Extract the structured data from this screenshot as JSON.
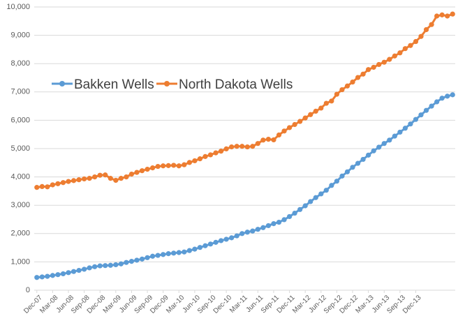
{
  "chart_data": {
    "type": "line",
    "title": "",
    "xlabel": "",
    "ylabel": "",
    "ylim": [
      0,
      10000
    ],
    "grid": true,
    "legend_placement": "upper-left",
    "y_ticks": [
      "0",
      "1,000",
      "2,000",
      "3,000",
      "4,000",
      "5,000",
      "6,000",
      "7,000",
      "8,000",
      "9,000",
      "10,000"
    ],
    "x_tick_labels": [
      "Dec-07",
      "Mar-08",
      "Jun-08",
      "Sep-08",
      "Dec-08",
      "Mar-09",
      "Jun-09",
      "Sep-09",
      "Dec-09",
      "Mar-10",
      "Jun-10",
      "Sep-10",
      "Dec-10",
      "Mar-11",
      "Jun-11",
      "Sep-11",
      "Dec-11",
      "Mar-12",
      "Jun-12",
      "Sep-12",
      "Dec-12",
      "Mar-13",
      "Jun-13",
      "Sep-13",
      "Dec-13"
    ],
    "x_first_month": "Dec-07",
    "x_last_month": "Feb-14",
    "series": [
      {
        "name": "Bakken Wells",
        "color": "#5B9BD5",
        "values": [
          450,
          470,
          490,
          520,
          550,
          580,
          620,
          660,
          700,
          740,
          790,
          830,
          860,
          870,
          880,
          900,
          930,
          980,
          1020,
          1060,
          1100,
          1150,
          1200,
          1230,
          1260,
          1290,
          1310,
          1330,
          1350,
          1400,
          1450,
          1510,
          1570,
          1630,
          1690,
          1750,
          1800,
          1850,
          1920,
          2000,
          2050,
          2090,
          2150,
          2210,
          2280,
          2350,
          2400,
          2490,
          2600,
          2720,
          2850,
          2980,
          3130,
          3270,
          3400,
          3530,
          3700,
          3850,
          4030,
          4180,
          4340,
          4480,
          4620,
          4770,
          4920,
          5050,
          5180,
          5300,
          5440,
          5580,
          5720,
          5870,
          6030,
          6190,
          6350,
          6500,
          6650,
          6780,
          6850,
          6900
        ]
      },
      {
        "name": "North Dakota Wells",
        "color": "#ED7D31",
        "values": [
          3630,
          3660,
          3650,
          3720,
          3760,
          3800,
          3840,
          3870,
          3900,
          3930,
          3950,
          4000,
          4060,
          4070,
          3950,
          3880,
          3950,
          4000,
          4100,
          4160,
          4220,
          4270,
          4320,
          4370,
          4390,
          4400,
          4410,
          4390,
          4430,
          4510,
          4570,
          4640,
          4720,
          4780,
          4850,
          4910,
          4990,
          5060,
          5080,
          5080,
          5060,
          5080,
          5180,
          5300,
          5330,
          5310,
          5480,
          5620,
          5740,
          5850,
          5960,
          6080,
          6200,
          6320,
          6430,
          6600,
          6680,
          6920,
          7080,
          7210,
          7350,
          7510,
          7630,
          7790,
          7870,
          7970,
          8050,
          8150,
          8270,
          8380,
          8530,
          8640,
          8780,
          8960,
          9200,
          9380,
          9680,
          9720,
          9680,
          9750
        ]
      }
    ]
  }
}
